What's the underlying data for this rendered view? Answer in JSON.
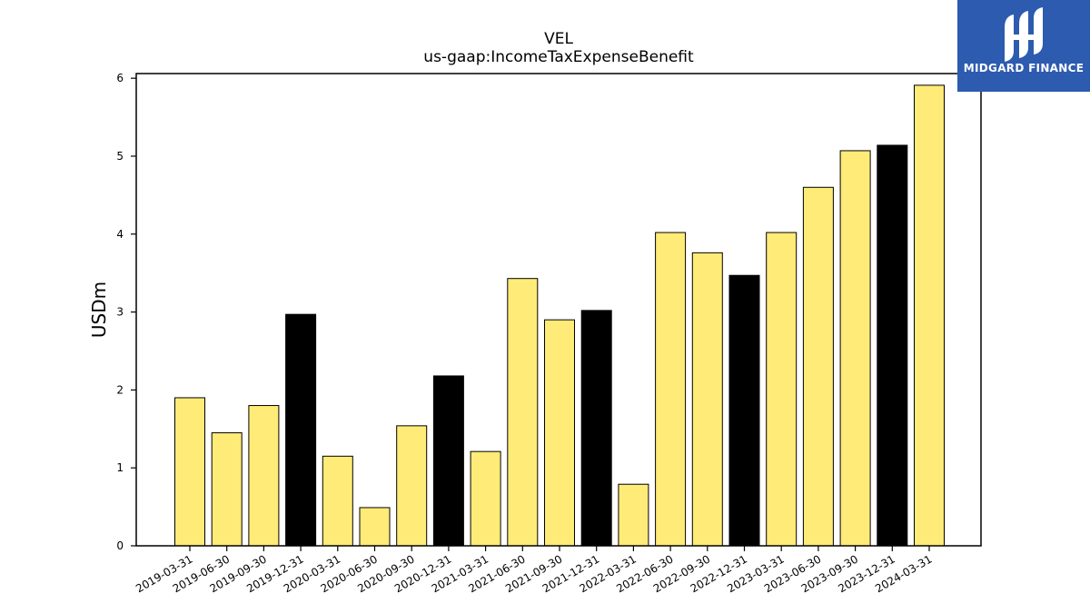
{
  "brand": {
    "name": "MIDGARD FINANCE",
    "color": "#2d5bb0"
  },
  "chart_data": {
    "type": "bar",
    "title": "VEL",
    "subtitle": "us-gaap:IncomeTaxExpenseBenefit",
    "xlabel": "",
    "ylabel": "USDm",
    "ylim": [
      0,
      6.06
    ],
    "yticks": [
      0,
      1,
      2,
      3,
      4,
      5,
      6
    ],
    "grid": false,
    "colors": {
      "quarter": "#ffeb77",
      "year_end": "#000000",
      "edge": "#000000"
    },
    "categories": [
      "2019-03-31",
      "2019-06-30",
      "2019-09-30",
      "2019-12-31",
      "2020-03-31",
      "2020-06-30",
      "2020-09-30",
      "2020-12-31",
      "2021-03-31",
      "2021-06-30",
      "2021-09-30",
      "2021-12-31",
      "2022-03-31",
      "2022-06-30",
      "2022-09-30",
      "2022-12-31",
      "2023-03-31",
      "2023-06-30",
      "2023-09-30",
      "2023-12-31",
      "2024-03-31"
    ],
    "values": [
      1.9,
      1.45,
      1.8,
      2.97,
      1.15,
      0.49,
      1.54,
      2.18,
      1.21,
      3.43,
      2.9,
      3.02,
      0.79,
      4.02,
      3.76,
      3.47,
      4.02,
      4.6,
      5.07,
      5.14,
      5.91
    ],
    "year_end": [
      false,
      false,
      false,
      true,
      false,
      false,
      false,
      true,
      false,
      false,
      false,
      true,
      false,
      false,
      false,
      true,
      false,
      false,
      false,
      true,
      false
    ]
  }
}
